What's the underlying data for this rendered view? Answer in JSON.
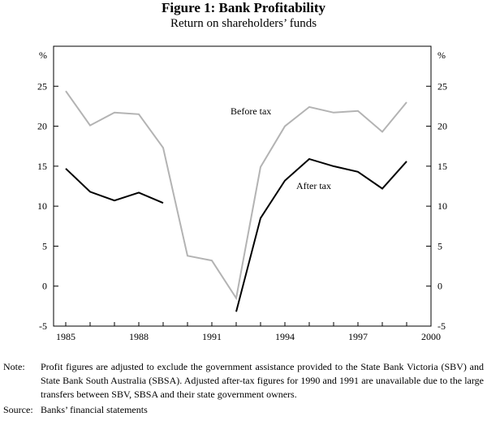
{
  "figure": {
    "title": "Figure 1: Bank Profitability",
    "subtitle": "Return on shareholders’ funds"
  },
  "chart_data": {
    "type": "line",
    "x_unit_left": "%",
    "y_unit_right": "%",
    "xlim": [
      1984.5,
      2000.0
    ],
    "ylim": [
      -5,
      30
    ],
    "x_ticks": [
      1985,
      1988,
      1991,
      1994,
      1997,
      2000
    ],
    "x_tick_labels": [
      "1985",
      "1988",
      "1991",
      "1994",
      "1997",
      "2000"
    ],
    "y_ticks": [
      -5,
      0,
      5,
      10,
      15,
      20,
      25
    ],
    "y_tick_labels": [
      "-5",
      "0",
      "5",
      "10",
      "15",
      "20",
      "25"
    ],
    "grid": false,
    "series": [
      {
        "name": "Before tax",
        "color": "#b3b3b3",
        "points": [
          [
            1985,
            24.4
          ],
          [
            1986,
            20.1
          ],
          [
            1987,
            21.7
          ],
          [
            1988,
            21.5
          ],
          [
            1989,
            17.3
          ],
          [
            1990,
            3.8
          ],
          [
            1991,
            3.2
          ],
          [
            1992,
            -1.5
          ],
          [
            1993,
            14.9
          ],
          [
            1994,
            20.0
          ],
          [
            1995,
            22.4
          ],
          [
            1996,
            21.7
          ],
          [
            1997,
            21.9
          ],
          [
            1998,
            19.3
          ],
          [
            1999,
            23.0
          ]
        ]
      },
      {
        "name": "After tax",
        "color": "#000000",
        "segments": [
          [
            [
              1985,
              14.7
            ],
            [
              1986,
              11.8
            ],
            [
              1987,
              10.7
            ],
            [
              1988,
              11.7
            ],
            [
              1989,
              10.4
            ]
          ],
          [
            [
              1992,
              -3.2
            ],
            [
              1993,
              8.5
            ],
            [
              1994,
              13.2
            ],
            [
              1995,
              15.9
            ],
            [
              1996,
              15.0
            ],
            [
              1997,
              14.3
            ],
            [
              1998,
              12.2
            ],
            [
              1999,
              15.6
            ]
          ]
        ]
      }
    ]
  },
  "notes": {
    "note_label": "Note:",
    "note_text": "Profit figures are adjusted to exclude the government assistance provided to the State Bank Victoria (SBV) and State Bank South Australia (SBSA). Adjusted after-tax figures for 1990 and 1991 are unavailable due to the large transfers between SBV, SBSA and their state government owners.",
    "source_label": "Source:",
    "source_text": "Banks’ financial statements"
  }
}
